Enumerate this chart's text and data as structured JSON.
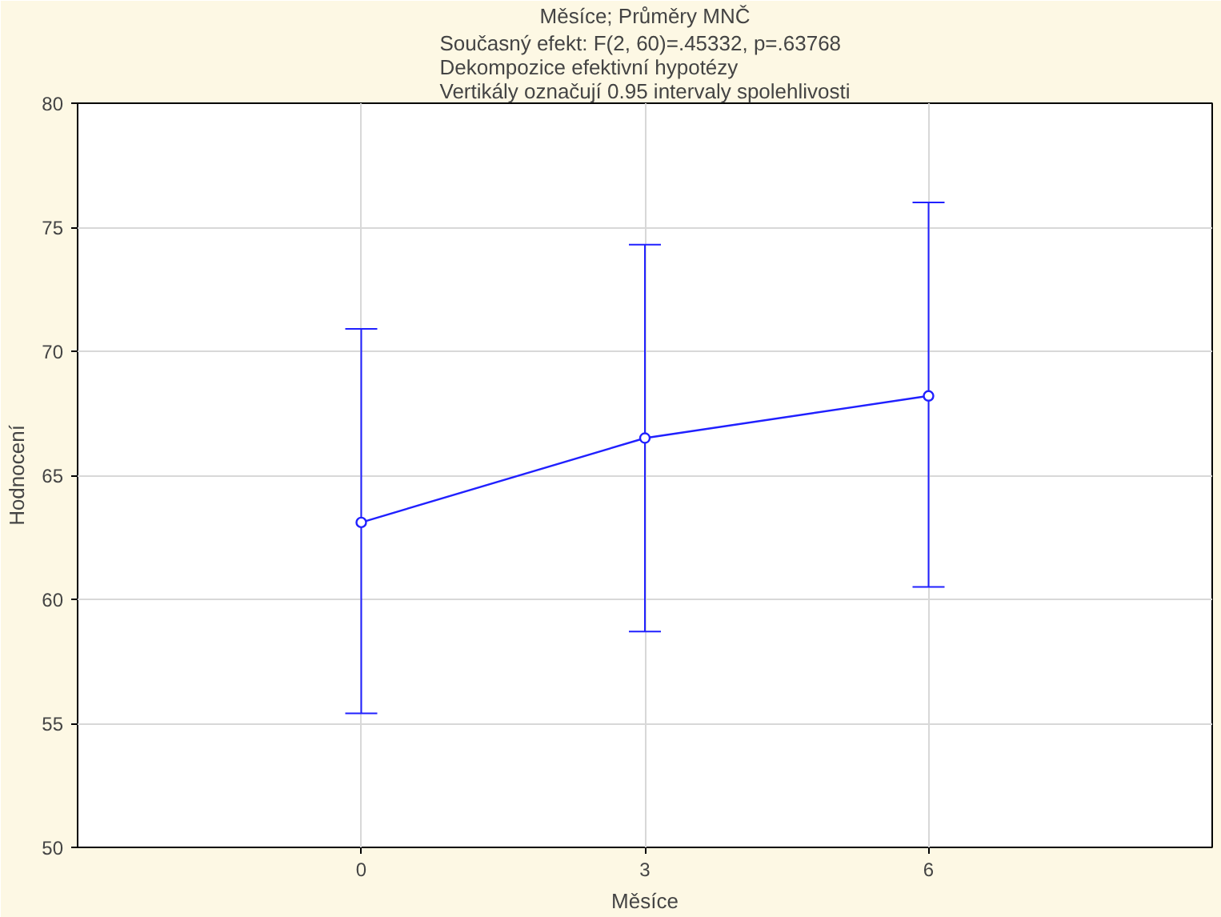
{
  "chart_data": {
    "type": "line",
    "title": "Měsíce; Průměry MNČ",
    "subtitle": "Současný efekt: F(2, 60)=.45332, p=.63768\nDekompozice efektivní hypotézy\nVertikály označují 0.95 intervaly spolehlivosti",
    "xlabel": "Měsíce",
    "ylabel": "Hodnocení",
    "x": [
      0,
      3,
      6
    ],
    "series": [
      {
        "color": "#2020ff",
        "values": [
          63.1,
          66.5,
          68.2
        ],
        "errors": [
          [
            55.4,
            70.9
          ],
          [
            58.7,
            74.3
          ],
          [
            60.5,
            76.0
          ]
        ]
      }
    ],
    "xlim": [
      -3,
      9
    ],
    "xticks": [
      0,
      3,
      6
    ],
    "ylim": [
      50,
      80
    ],
    "yticks": [
      50,
      55,
      60,
      65,
      70,
      75,
      80
    ],
    "grid": true,
    "marker": "circle",
    "line_style": "solid"
  }
}
